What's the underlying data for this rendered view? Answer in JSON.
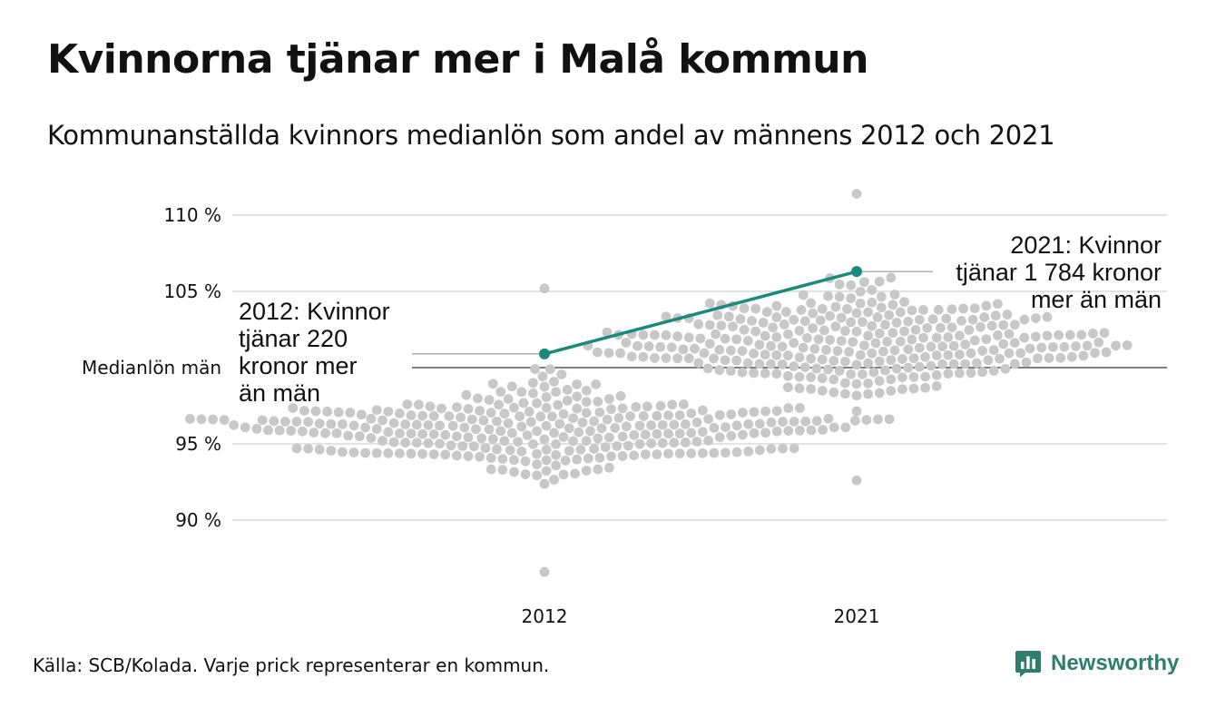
{
  "title": "Kvinnorna tjänar mer i Malå kommun",
  "subtitle": "Kommunanställda kvinnors medianlön som andel av männens 2012 och 2021",
  "source": "Källa: SCB/Kolada. Varje prick representerar en kommun.",
  "logo_text": "Newsworthy",
  "colors": {
    "highlight": "#1a8a7d",
    "dots": "#c8c8c8",
    "grid": "#e3e3e3",
    "baseline": "#333333"
  },
  "chart_data": {
    "type": "scatter",
    "subtype": "beeswarm",
    "categories": [
      "2012",
      "2021"
    ],
    "y_ticks": [
      {
        "value": 90,
        "label": "90 %"
      },
      {
        "value": 95,
        "label": "95 %"
      },
      {
        "value": 105,
        "label": "105 %"
      },
      {
        "value": 110,
        "label": "110 %"
      }
    ],
    "reference_line": {
      "value": 100,
      "label": "Medianlön män"
    },
    "ylim": [
      86,
      111.5
    ],
    "highlight": {
      "values": [
        100.9,
        106.3
      ],
      "annotations": [
        {
          "category": "2012",
          "lines": [
            "2012: Kvinnor",
            "tjänar 220",
            "kronor mer",
            "än män"
          ]
        },
        {
          "category": "2021",
          "lines": [
            "2021: Kvinnor",
            "tjänar 1 784 kronor",
            "mer än män"
          ]
        }
      ]
    },
    "distributions": [
      {
        "category": "2012",
        "min": 86.6,
        "max": 105.2
      },
      {
        "category": "2021",
        "min": 92.6,
        "max": 111.4
      }
    ]
  }
}
